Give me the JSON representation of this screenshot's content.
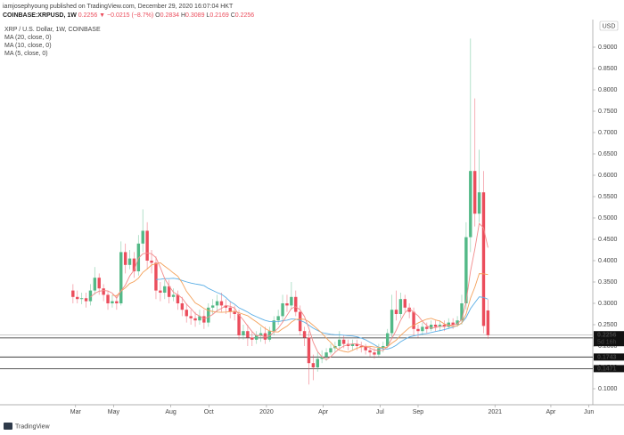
{
  "header": {
    "author_line": "iamjosephyoung published on TradingView.com, December 29, 2020 16:07:04 HKT",
    "symbol": "COINBASE:XRPUSD, 1W",
    "change": "▼ −0.0215 (−8.7%)",
    "ohlc_letters": [
      "O",
      "H",
      "L",
      "C"
    ],
    "currency": "USD",
    "countdown": "5d 16h",
    "brand": "TradingView"
  },
  "chart_data": {
    "type": "candlestick",
    "title": "XRP / U.S. Dollar, 1W, COINBASE",
    "open": [
      0.33,
      0.315,
      0.31,
      0.312,
      0.305,
      0.33,
      0.36,
      0.335,
      0.32,
      0.3,
      0.305,
      0.3,
      0.42,
      0.39,
      0.405,
      0.375,
      0.44,
      0.47,
      0.4,
      0.395,
      0.33,
      0.325,
      0.34,
      0.315,
      0.32,
      0.3,
      0.285,
      0.27,
      0.265,
      0.26,
      0.27,
      0.255,
      0.29,
      0.295,
      0.305,
      0.295,
      0.29,
      0.28,
      0.275,
      0.225,
      0.235,
      0.22,
      0.215,
      0.225,
      0.23,
      0.215,
      0.235,
      0.26,
      0.27,
      0.3,
      0.295,
      0.315,
      0.28,
      0.235,
      0.22,
      0.16,
      0.15,
      0.17,
      0.175,
      0.185,
      0.195,
      0.2,
      0.215,
      0.205,
      0.2,
      0.205,
      0.2,
      0.198,
      0.19,
      0.185,
      0.18,
      0.195,
      0.2,
      0.23,
      0.285,
      0.275,
      0.31,
      0.29,
      0.28,
      0.24,
      0.235,
      0.245,
      0.24,
      0.25,
      0.245,
      0.25,
      0.245,
      0.255,
      0.25,
      0.26,
      0.3,
      0.455,
      0.61,
      0.51,
      0.56,
      0.2834
    ],
    "high": [
      0.345,
      0.33,
      0.325,
      0.325,
      0.345,
      0.385,
      0.37,
      0.345,
      0.33,
      0.32,
      0.32,
      0.445,
      0.44,
      0.425,
      0.42,
      0.46,
      0.52,
      0.49,
      0.425,
      0.41,
      0.35,
      0.355,
      0.355,
      0.335,
      0.33,
      0.315,
      0.3,
      0.285,
      0.28,
      0.285,
      0.285,
      0.3,
      0.31,
      0.32,
      0.325,
      0.31,
      0.305,
      0.295,
      0.285,
      0.25,
      0.25,
      0.235,
      0.235,
      0.245,
      0.245,
      0.245,
      0.27,
      0.285,
      0.32,
      0.32,
      0.35,
      0.33,
      0.295,
      0.245,
      0.235,
      0.18,
      0.185,
      0.19,
      0.195,
      0.205,
      0.21,
      0.235,
      0.225,
      0.215,
      0.215,
      0.215,
      0.21,
      0.205,
      0.2,
      0.195,
      0.205,
      0.21,
      0.24,
      0.32,
      0.33,
      0.325,
      0.32,
      0.3,
      0.29,
      0.25,
      0.255,
      0.255,
      0.26,
      0.26,
      0.26,
      0.26,
      0.265,
      0.265,
      0.27,
      0.32,
      0.49,
      0.92,
      0.78,
      0.66,
      0.61,
      0.3089
    ],
    "low": [
      0.3,
      0.3,
      0.298,
      0.29,
      0.295,
      0.32,
      0.32,
      0.305,
      0.285,
      0.29,
      0.285,
      0.295,
      0.37,
      0.38,
      0.36,
      0.365,
      0.42,
      0.38,
      0.37,
      0.31,
      0.305,
      0.31,
      0.3,
      0.305,
      0.285,
      0.27,
      0.255,
      0.25,
      0.245,
      0.25,
      0.24,
      0.245,
      0.275,
      0.28,
      0.28,
      0.275,
      0.265,
      0.26,
      0.215,
      0.215,
      0.2,
      0.2,
      0.205,
      0.21,
      0.205,
      0.21,
      0.225,
      0.25,
      0.255,
      0.28,
      0.285,
      0.27,
      0.225,
      0.2,
      0.11,
      0.12,
      0.14,
      0.16,
      0.165,
      0.18,
      0.185,
      0.195,
      0.195,
      0.19,
      0.19,
      0.19,
      0.185,
      0.18,
      0.175,
      0.17,
      0.175,
      0.185,
      0.195,
      0.22,
      0.26,
      0.265,
      0.28,
      0.265,
      0.225,
      0.22,
      0.225,
      0.23,
      0.235,
      0.235,
      0.235,
      0.235,
      0.24,
      0.24,
      0.245,
      0.25,
      0.285,
      0.42,
      0.48,
      0.49,
      0.23,
      0.2169
    ],
    "close": [
      0.315,
      0.31,
      0.312,
      0.305,
      0.33,
      0.36,
      0.335,
      0.32,
      0.3,
      0.305,
      0.3,
      0.42,
      0.39,
      0.405,
      0.375,
      0.44,
      0.47,
      0.4,
      0.395,
      0.33,
      0.325,
      0.34,
      0.315,
      0.32,
      0.3,
      0.285,
      0.27,
      0.265,
      0.26,
      0.27,
      0.255,
      0.29,
      0.295,
      0.305,
      0.295,
      0.29,
      0.28,
      0.275,
      0.225,
      0.235,
      0.22,
      0.215,
      0.225,
      0.23,
      0.215,
      0.235,
      0.26,
      0.27,
      0.3,
      0.295,
      0.315,
      0.28,
      0.235,
      0.22,
      0.16,
      0.15,
      0.17,
      0.175,
      0.185,
      0.195,
      0.2,
      0.215,
      0.205,
      0.2,
      0.205,
      0.2,
      0.198,
      0.19,
      0.185,
      0.18,
      0.195,
      0.2,
      0.23,
      0.285,
      0.275,
      0.31,
      0.29,
      0.28,
      0.24,
      0.235,
      0.245,
      0.24,
      0.25,
      0.245,
      0.25,
      0.245,
      0.255,
      0.25,
      0.26,
      0.3,
      0.455,
      0.61,
      0.51,
      0.56,
      0.2471,
      0.2256
    ],
    "up_color": "#53b987",
    "down_color": "#eb4d5c",
    "moving_averages": [
      {
        "label": "MA (20, close, 0)",
        "period": 20,
        "color": "#5aaee6"
      },
      {
        "label": "MA (10, close, 0)",
        "period": 10,
        "color": "#f4a15a"
      },
      {
        "label": "MA (5, close, 0)",
        "period": 5,
        "color": "#f28b8b"
      }
    ],
    "price_lines": [
      {
        "value": 0.219,
        "label": "0.2190"
      },
      {
        "value": 0.1743,
        "label": "0.1743"
      },
      {
        "value": 0.1471,
        "label": "0.1471"
      }
    ],
    "xlim": [
      -16.7,
      119.0
    ],
    "xticks": [
      {
        "value": 0.6,
        "label": "Mar"
      },
      {
        "value": 9.3,
        "label": "May"
      },
      {
        "value": 22.4,
        "label": "Aug"
      },
      {
        "value": 31.1,
        "label": "Oct"
      },
      {
        "value": 44.3,
        "label": "2020"
      },
      {
        "value": 57.3,
        "label": "Apr"
      },
      {
        "value": 70.3,
        "label": "Jul"
      },
      {
        "value": 79.0,
        "label": "Sep"
      },
      {
        "value": 96.6,
        "label": "2021"
      },
      {
        "value": 109.4,
        "label": "Apr"
      },
      {
        "value": 118.1,
        "label": "Jun"
      }
    ],
    "ylim": [
      0.0625,
      0.9646
    ],
    "yticks": [
      {
        "value": 0.1,
        "label": "0.1000"
      },
      {
        "value": 0.15,
        "label": "0.1500"
      },
      {
        "value": 0.2,
        "label": "0.2000"
      },
      {
        "value": 0.25,
        "label": "0.2500"
      },
      {
        "value": 0.3,
        "label": "0.3000"
      },
      {
        "value": 0.35,
        "label": "0.3500"
      },
      {
        "value": 0.4,
        "label": "0.4000"
      },
      {
        "value": 0.45,
        "label": "0.4500"
      },
      {
        "value": 0.5,
        "label": "0.5000"
      },
      {
        "value": 0.55,
        "label": "0.5500"
      },
      {
        "value": 0.6,
        "label": "0.6000"
      },
      {
        "value": 0.65,
        "label": "0.6500"
      },
      {
        "value": 0.7,
        "label": "0.7000"
      },
      {
        "value": 0.75,
        "label": "0.7500"
      },
      {
        "value": 0.8,
        "label": "0.8000"
      },
      {
        "value": 0.85,
        "label": "0.8500"
      },
      {
        "value": 0.9,
        "label": "0.9000"
      }
    ]
  }
}
